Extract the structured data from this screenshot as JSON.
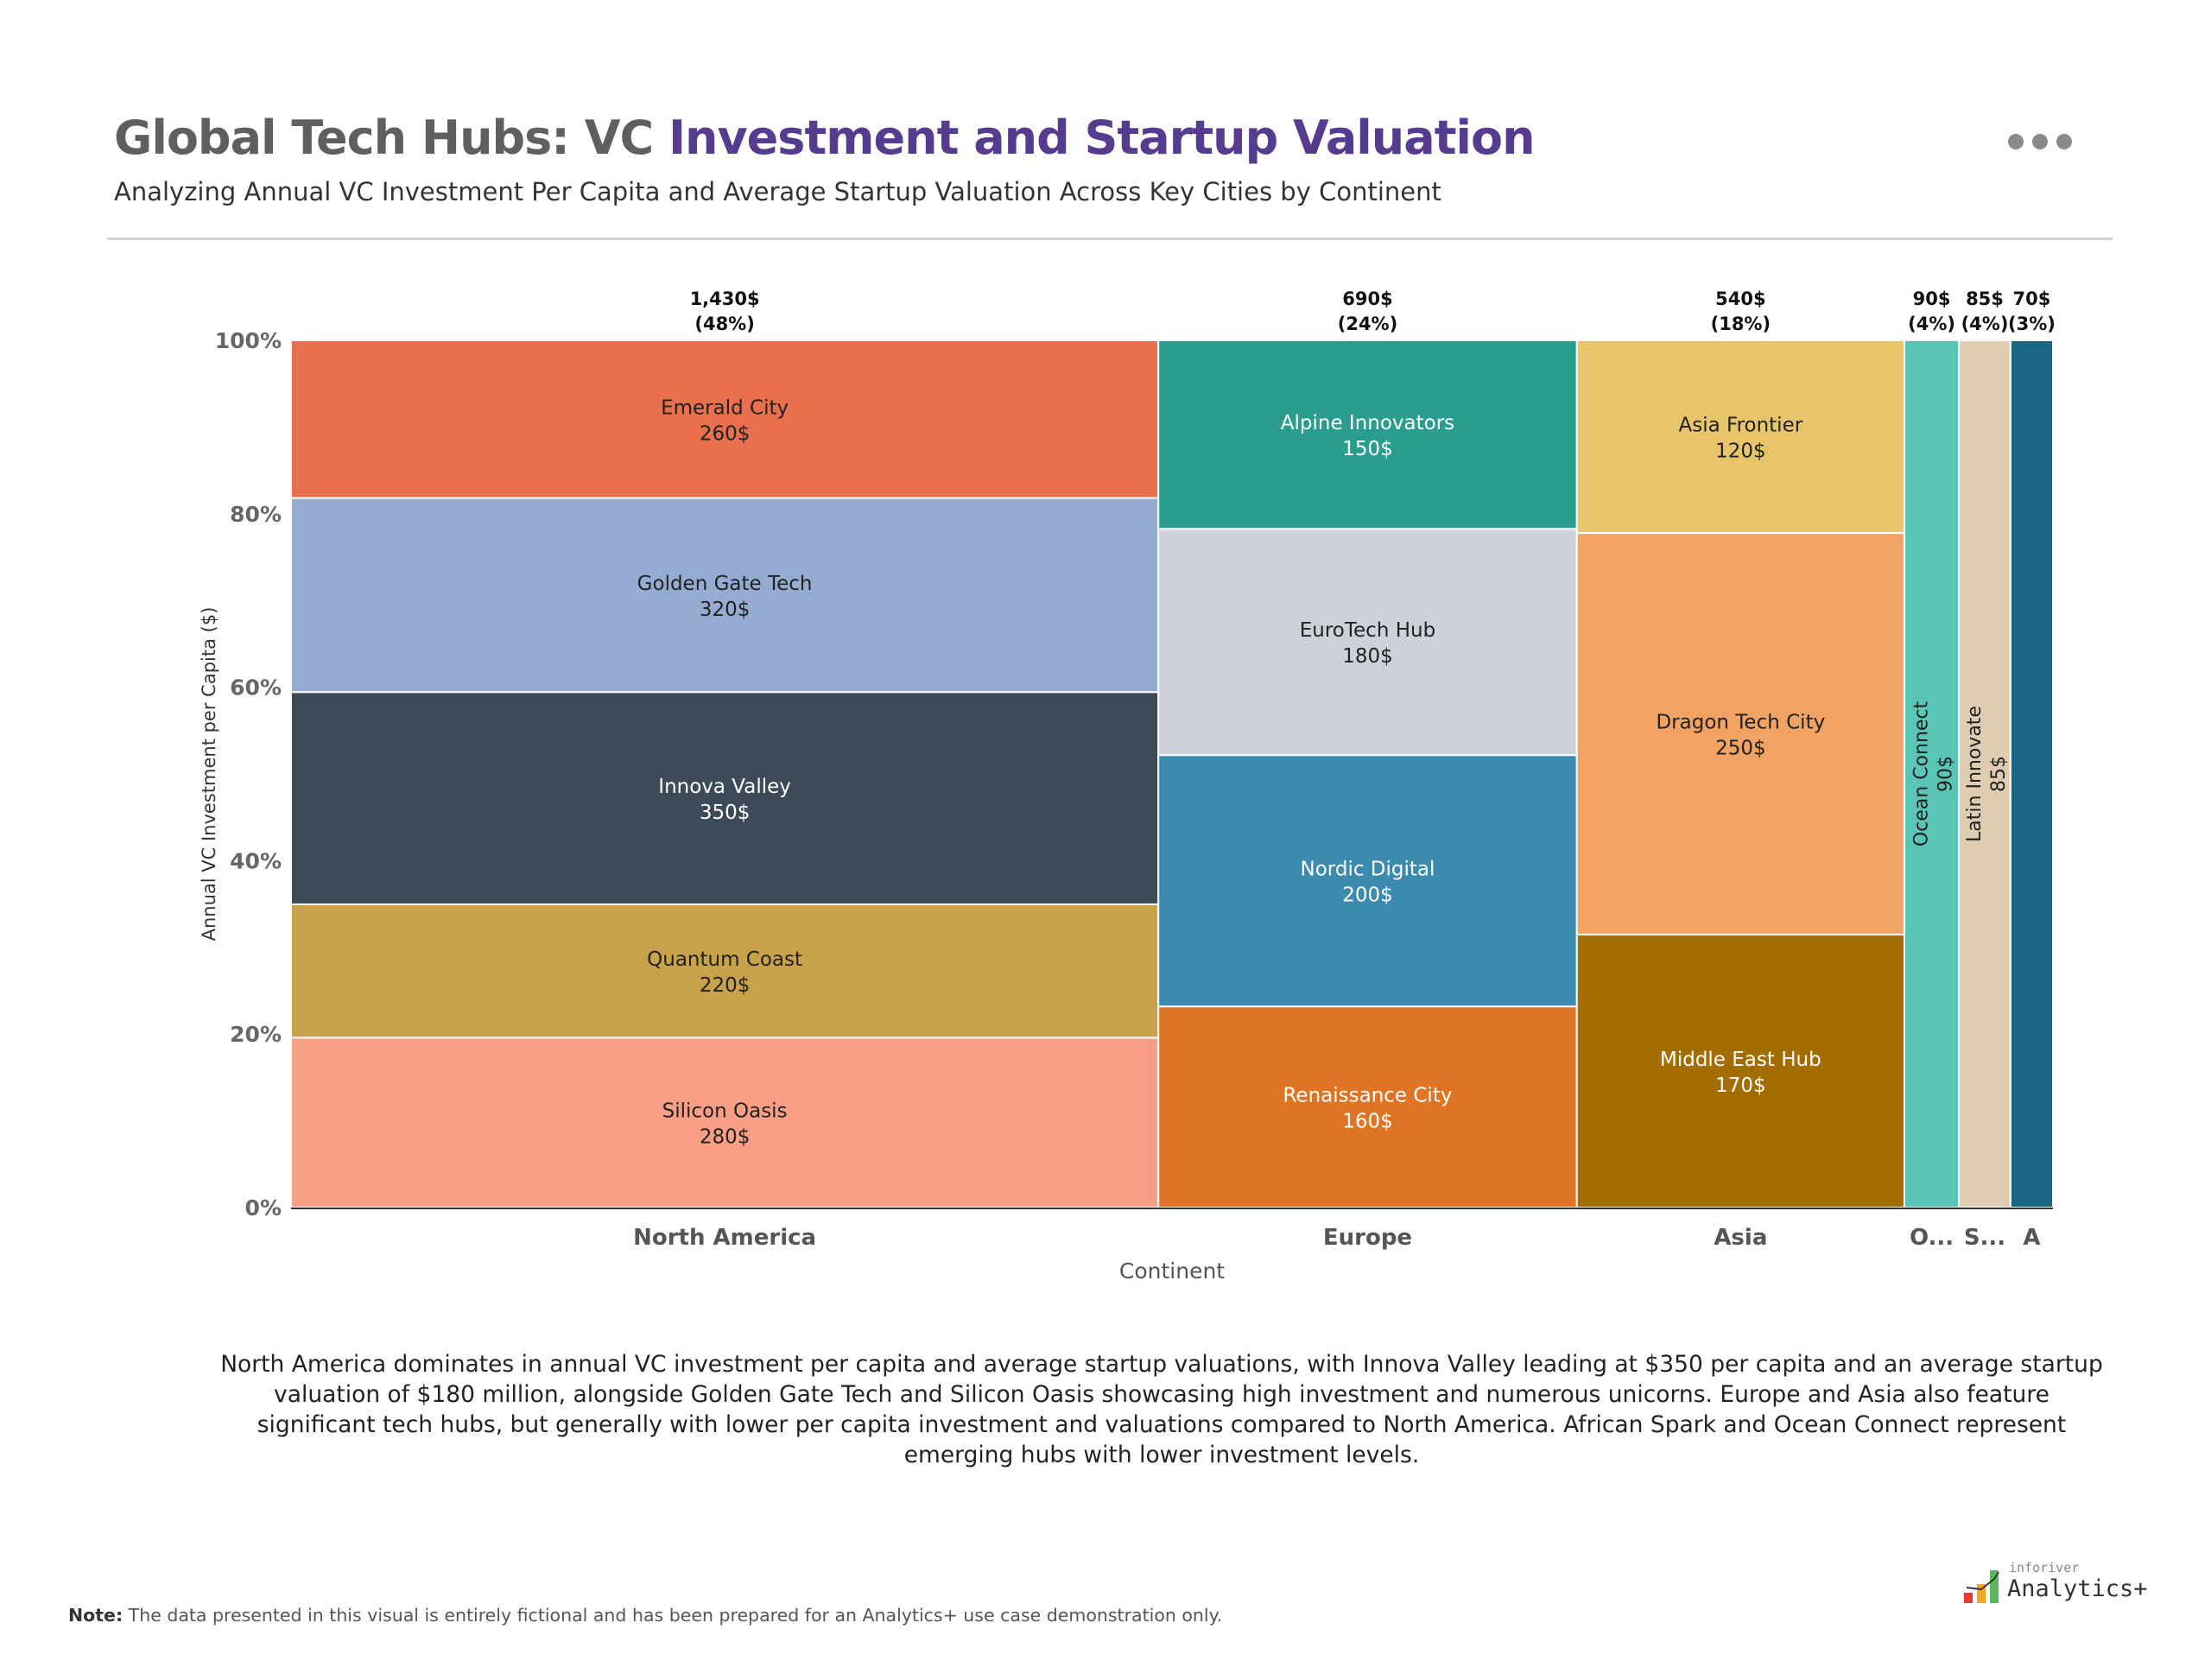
{
  "header": {
    "title_part1": "Global Tech Hubs: VC ",
    "title_part2": "Investment and Startup Valuation",
    "subtitle": "Analyzing Annual VC Investment Per Capita and Average Startup Valuation Across Key Cities by Continent",
    "more_icon": "ellipsis-icon",
    "title_accent_color": "#553c8f"
  },
  "chart_data": {
    "type": "marimekko",
    "xlabel": "Continent",
    "ylabel": "Annual VC Investment per Capita ($)",
    "ylim": [
      0,
      100
    ],
    "y_ticks": [
      "0%",
      "20%",
      "40%",
      "60%",
      "80%",
      "100%"
    ],
    "categories": [
      {
        "label": "North America",
        "total_label": "1,430$",
        "share_label": "(48%)",
        "total": 1430,
        "segments": [
          {
            "name": "Silicon Oasis",
            "value": 280,
            "value_label": "280$",
            "color": "#F89F86"
          },
          {
            "name": "Quantum Coast",
            "value": 220,
            "value_label": "220$",
            "color": "#C8A24B"
          },
          {
            "name": "Innova Valley",
            "value": 350,
            "value_label": "350$",
            "color": "#3D4A57"
          },
          {
            "name": "Golden Gate Tech",
            "value": 320,
            "value_label": "320$",
            "color": "#94ACD2"
          },
          {
            "name": "Emerald City",
            "value": 260,
            "value_label": "260$",
            "color": "#E8704F"
          }
        ]
      },
      {
        "label": "Europe",
        "total_label": "690$",
        "share_label": "(24%)",
        "total": 690,
        "segments": [
          {
            "name": "Renaissance City",
            "value": 160,
            "value_label": "160$",
            "color": "#DF7524"
          },
          {
            "name": "Nordic Digital",
            "value": 200,
            "value_label": "200$",
            "color": "#3C8BAE"
          },
          {
            "name": "EuroTech Hub",
            "value": 180,
            "value_label": "180$",
            "color": "#CCD1DA"
          },
          {
            "name": "Alpine Innovators",
            "value": 150,
            "value_label": "150$",
            "color": "#2A9D8F"
          }
        ]
      },
      {
        "label": "Asia",
        "total_label": "540$",
        "share_label": "(18%)",
        "total": 540,
        "segments": [
          {
            "name": "Middle East Hub",
            "value": 170,
            "value_label": "170$",
            "color": "#A36D00"
          },
          {
            "name": "Dragon Tech City",
            "value": 250,
            "value_label": "250$",
            "color": "#F2A262"
          },
          {
            "name": "Asia Frontier",
            "value": 120,
            "value_label": "120$",
            "color": "#E8C46A"
          }
        ]
      },
      {
        "label": "O...",
        "total_label": "90$",
        "share_label": "(4%)",
        "total": 90,
        "segments": [
          {
            "name": "Ocean Connect",
            "value": 90,
            "value_label": "90$",
            "color": "#5AC5B4",
            "vertical": true
          }
        ]
      },
      {
        "label": "S...",
        "total_label": "85$",
        "share_label": "(4%)",
        "total": 85,
        "segments": [
          {
            "name": "Latin Innovate",
            "value": 85,
            "value_label": "85$",
            "color": "#E0CCB0",
            "vertical": true
          }
        ]
      },
      {
        "label": "A",
        "total_label": "70$",
        "share_label": "(3%)",
        "total": 70,
        "segments": [
          {
            "name": "",
            "value": 70,
            "value_label": "",
            "color": "#1A6484"
          }
        ]
      }
    ]
  },
  "summary": "North America dominates in annual VC investment per capita and average startup valuations, with Innova Valley leading at $350 per capita and an average startup valuation of $180 million, alongside Golden Gate Tech and Silicon Oasis showcasing high investment and numerous unicorns. Europe and Asia also feature significant tech hubs, but generally with lower per capita investment and valuations compared to North America. African Spark and Ocean Connect represent emerging hubs with lower investment levels.",
  "footer": {
    "note_label": "Note:",
    "note_text": " The data presented in this visual is entirely fictional and has been prepared for an Analytics+ use case demonstration only.",
    "logo_small": "inforiver",
    "logo_big": "Analytics+"
  }
}
